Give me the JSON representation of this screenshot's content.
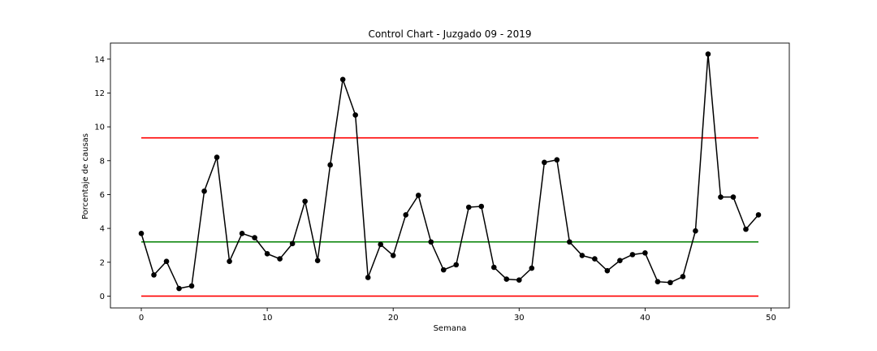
{
  "chart_data": {
    "type": "line",
    "title": "Control Chart - Juzgado 09 - 2019",
    "xlabel": "Semana",
    "ylabel": "Porcentaje de causas",
    "xlim": [
      -2.45,
      51.45
    ],
    "ylim": [
      -0.7,
      14.95
    ],
    "xticks": [
      0,
      10,
      20,
      30,
      40,
      50
    ],
    "yticks": [
      0,
      2,
      4,
      6,
      8,
      10,
      12,
      14
    ],
    "grid": false,
    "legend": "none",
    "series": [
      {
        "color": "#000000",
        "marker": "circle",
        "x": [
          0,
          1,
          2,
          3,
          4,
          5,
          6,
          7,
          8,
          9,
          10,
          11,
          12,
          13,
          14,
          15,
          16,
          17,
          18,
          19,
          20,
          21,
          22,
          23,
          24,
          25,
          26,
          27,
          28,
          29,
          30,
          31,
          32,
          33,
          34,
          35,
          36,
          37,
          38,
          39,
          40,
          41,
          42,
          43,
          44,
          45,
          46,
          47,
          48,
          49
        ],
        "values": [
          3.7,
          1.25,
          2.05,
          0.45,
          0.6,
          6.2,
          8.2,
          2.05,
          3.7,
          3.45,
          2.5,
          2.2,
          3.1,
          5.6,
          2.1,
          7.75,
          12.8,
          10.7,
          1.1,
          3.05,
          2.4,
          4.8,
          5.95,
          3.2,
          1.55,
          1.85,
          5.25,
          5.3,
          1.7,
          1.0,
          0.95,
          1.65,
          7.9,
          8.05,
          3.2,
          2.4,
          2.2,
          1.5,
          2.1,
          2.45,
          2.55,
          0.85,
          0.8,
          1.15,
          3.85,
          14.3,
          5.85,
          5.85,
          3.95,
          4.8
        ]
      }
    ],
    "control_lines": [
      {
        "kind": "upper-limit",
        "value": 9.35,
        "color": "#ff0000",
        "x_range": [
          0,
          49
        ]
      },
      {
        "kind": "center-line",
        "value": 3.2,
        "color": "#008000",
        "x_range": [
          0,
          49
        ]
      },
      {
        "kind": "lower-limit",
        "value": 0.0,
        "color": "#ff0000",
        "x_range": [
          0,
          49
        ]
      }
    ]
  }
}
